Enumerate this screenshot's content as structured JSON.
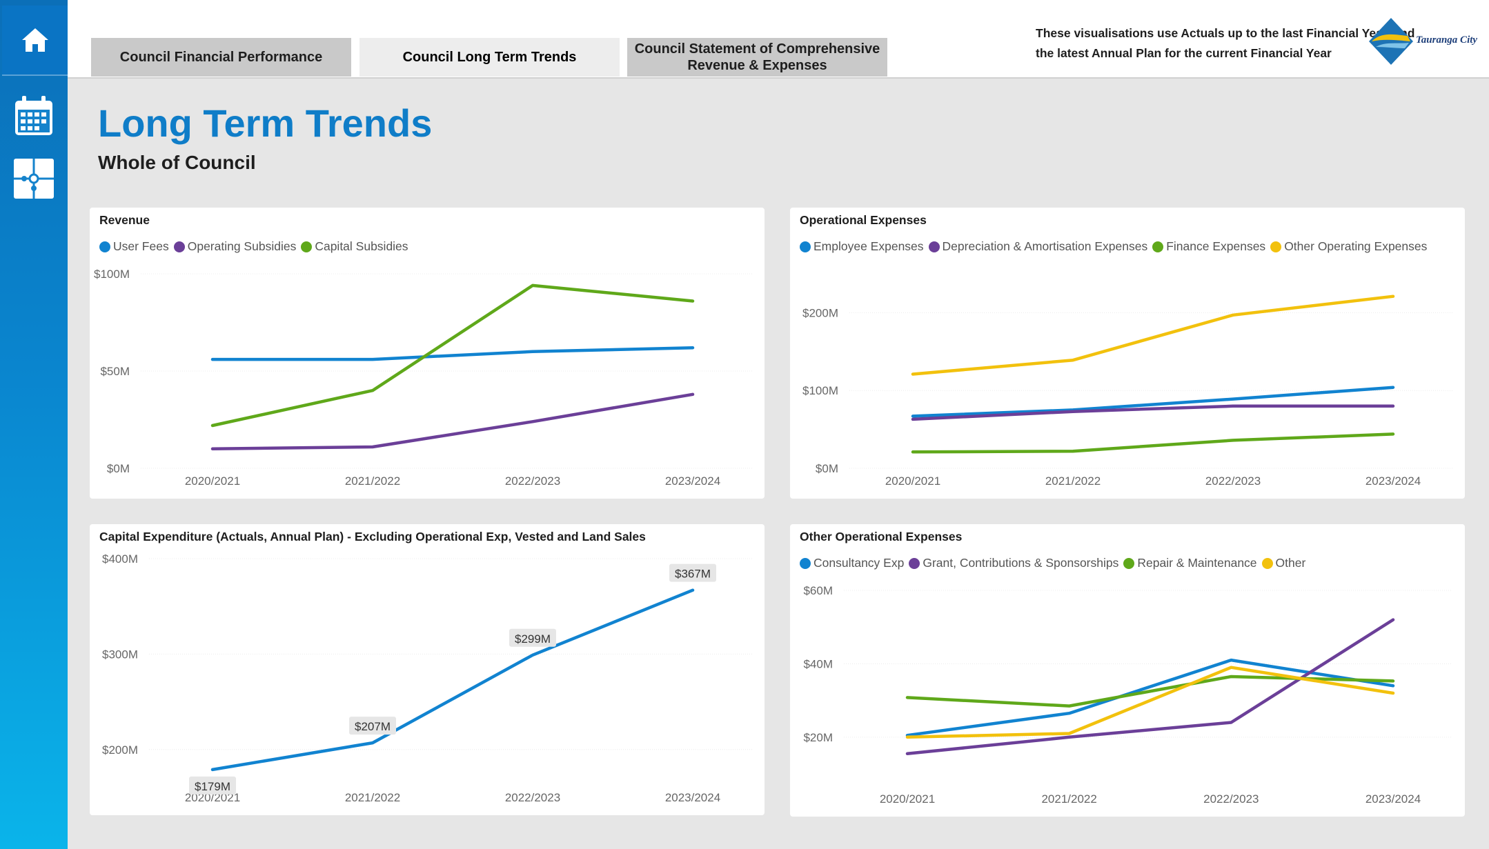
{
  "nav": {
    "tabs": [
      {
        "label": "Council Financial Performance"
      },
      {
        "label": "Council Long Term Trends"
      },
      {
        "label": "Council Statement of Comprehensive Revenue & Expenses"
      }
    ],
    "notice": "These visualisations use Actuals up to the last Financial Year, and the latest Annual Plan for the current Financial Year",
    "logo_text": "Tauranga City"
  },
  "sidebar": {
    "items": [
      {
        "icon": "home-icon"
      },
      {
        "icon": "calendar-icon"
      },
      {
        "icon": "puzzle-icon"
      }
    ]
  },
  "page": {
    "title": "Long Term Trends",
    "subtitle": "Whole of Council"
  },
  "colors": {
    "accent": "#0f7dc8",
    "blue": "#1183d0",
    "purple": "#6b3f98",
    "green": "#5fa81a",
    "yellow": "#f2c10d"
  },
  "chart_data": [
    {
      "id": "revenue",
      "type": "line",
      "title": "Revenue",
      "categories": [
        "2020/2021",
        "2021/2022",
        "2022/2023",
        "2023/2024"
      ],
      "y_ticks": [
        0,
        50,
        100
      ],
      "y_tick_labels": [
        "$0M",
        "$50M",
        "$100M"
      ],
      "ylim": [
        0,
        100
      ],
      "series": [
        {
          "name": "User Fees",
          "color": "#1183d0",
          "values": [
            56,
            56,
            60,
            62
          ]
        },
        {
          "name": "Operating Subsidies",
          "color": "#6b3f98",
          "values": [
            10,
            11,
            24,
            38
          ]
        },
        {
          "name": "Capital Subsidies",
          "color": "#5fa81a",
          "values": [
            22,
            40,
            94,
            86
          ]
        }
      ]
    },
    {
      "id": "operational",
      "type": "line",
      "title": "Operational Expenses",
      "categories": [
        "2020/2021",
        "2021/2022",
        "2022/2023",
        "2023/2024"
      ],
      "y_ticks": [
        0,
        100,
        200
      ],
      "y_tick_labels": [
        "$0M",
        "$100M",
        "$200M"
      ],
      "ylim": [
        0,
        250
      ],
      "series": [
        {
          "name": "Employee Expenses",
          "color": "#1183d0",
          "values": [
            67,
            75,
            89,
            104
          ]
        },
        {
          "name": "Depreciation & Amortisation Expenses",
          "color": "#6b3f98",
          "values": [
            63,
            73,
            80,
            80
          ]
        },
        {
          "name": "Finance Expenses",
          "color": "#5fa81a",
          "values": [
            21,
            22,
            36,
            44
          ]
        },
        {
          "name": "Other Operating Expenses",
          "color": "#f2c10d",
          "values": [
            121,
            139,
            197,
            221
          ]
        }
      ]
    },
    {
      "id": "capex",
      "type": "line",
      "title": "Capital Expenditure (Actuals, Annual Plan) - Excluding Operational Exp, Vested and Land Sales",
      "categories": [
        "2020/2021",
        "2021/2022",
        "2022/2023",
        "2023/2024"
      ],
      "y_ticks": [
        200,
        300,
        400
      ],
      "y_tick_labels": [
        "$200M",
        "$300M",
        "$400M"
      ],
      "ylim": [
        163,
        400
      ],
      "series": [
        {
          "color": "#1183d0",
          "values": [
            179,
            207,
            299,
            367
          ]
        }
      ],
      "data_labels": [
        "$179M",
        "$207M",
        "$299M",
        "$367M"
      ]
    },
    {
      "id": "other_operational",
      "type": "line",
      "title": "Other Operational Expenses",
      "categories": [
        "2020/2021",
        "2021/2022",
        "2022/2023",
        "2023/2024"
      ],
      "y_ticks": [
        20,
        40,
        60
      ],
      "y_tick_labels": [
        "$20M",
        "$40M",
        "$60M"
      ],
      "ylim": [
        7,
        60
      ],
      "series": [
        {
          "name": "Consultancy Exp",
          "color": "#1183d0",
          "values": [
            20.5,
            26.5,
            41,
            34
          ]
        },
        {
          "name": "Grant, Contributions & Sponsorships",
          "color": "#6b3f98",
          "values": [
            15.5,
            20,
            24,
            52
          ]
        },
        {
          "name": "Repair & Maintenance",
          "color": "#5fa81a",
          "values": [
            30.8,
            28.5,
            36.5,
            35.3
          ]
        },
        {
          "name": "Other",
          "color": "#f2c10d",
          "values": [
            20,
            21,
            39,
            32
          ]
        }
      ]
    }
  ]
}
